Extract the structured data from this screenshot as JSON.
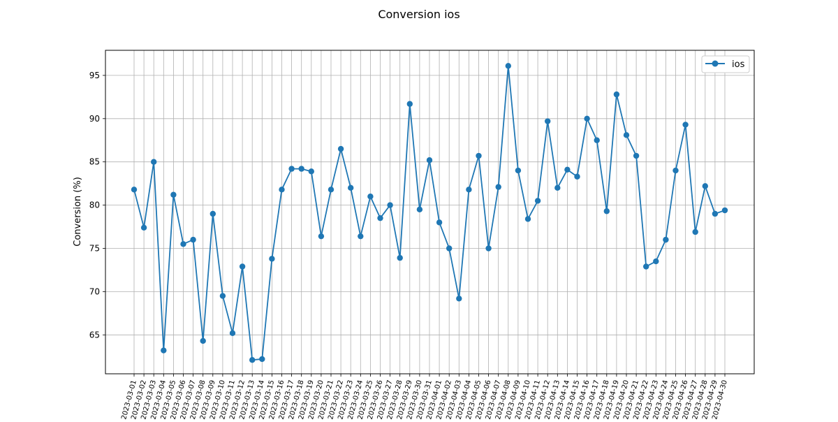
{
  "chart_data": {
    "type": "line",
    "title": "Conversion ios",
    "xlabel": "",
    "ylabel": "Conversion (%)",
    "ylim": [
      60.5,
      97.9
    ],
    "yticks": [
      65,
      70,
      75,
      80,
      85,
      90,
      95
    ],
    "grid": true,
    "legend_position": "top-right",
    "colors": {
      "series": "#1f77b4",
      "grid": "#b0b0b0",
      "axis": "#000000"
    },
    "x": [
      "2023-03-01",
      "2023-03-02",
      "2023-03-03",
      "2023-03-04",
      "2023-03-05",
      "2023-03-06",
      "2023-03-07",
      "2023-03-08",
      "2023-03-09",
      "2023-03-10",
      "2023-03-11",
      "2023-03-12",
      "2023-03-13",
      "2023-03-14",
      "2023-03-15",
      "2023-03-16",
      "2023-03-17",
      "2023-03-18",
      "2023-03-19",
      "2023-03-20",
      "2023-03-21",
      "2023-03-22",
      "2023-03-23",
      "2023-03-24",
      "2023-03-25",
      "2023-03-26",
      "2023-03-27",
      "2023-03-28",
      "2023-03-29",
      "2023-03-30",
      "2023-03-31",
      "2023-04-01",
      "2023-04-02",
      "2023-04-03",
      "2023-04-04",
      "2023-04-05",
      "2023-04-06",
      "2023-04-07",
      "2023-04-08",
      "2023-04-09",
      "2023-04-10",
      "2023-04-11",
      "2023-04-12",
      "2023-04-13",
      "2023-04-14",
      "2023-04-15",
      "2023-04-16",
      "2023-04-17",
      "2023-04-18",
      "2023-04-19",
      "2023-04-20",
      "2023-04-21",
      "2023-04-22",
      "2023-04-23",
      "2023-04-24",
      "2023-04-25",
      "2023-04-26",
      "2023-04-27",
      "2023-04-28",
      "2023-04-29",
      "2023-04-30"
    ],
    "series": [
      {
        "name": "ios",
        "marker": "circle",
        "values": [
          81.8,
          77.4,
          85.0,
          63.2,
          81.2,
          75.5,
          76.0,
          64.3,
          79.0,
          69.5,
          65.2,
          72.9,
          62.1,
          62.2,
          73.8,
          81.8,
          84.2,
          84.2,
          83.9,
          76.4,
          81.8,
          86.5,
          82.0,
          76.4,
          81.0,
          78.5,
          80.0,
          73.9,
          91.7,
          79.5,
          85.2,
          78.0,
          75.0,
          69.2,
          81.8,
          85.7,
          75.0,
          82.1,
          96.1,
          84.0,
          78.4,
          80.5,
          89.7,
          82.0,
          84.1,
          83.3,
          90.0,
          87.5,
          79.3,
          92.8,
          88.1,
          85.7,
          72.9,
          73.5,
          76.0,
          84.0,
          89.3,
          76.9,
          82.2,
          79.0,
          79.4
        ]
      }
    ]
  }
}
